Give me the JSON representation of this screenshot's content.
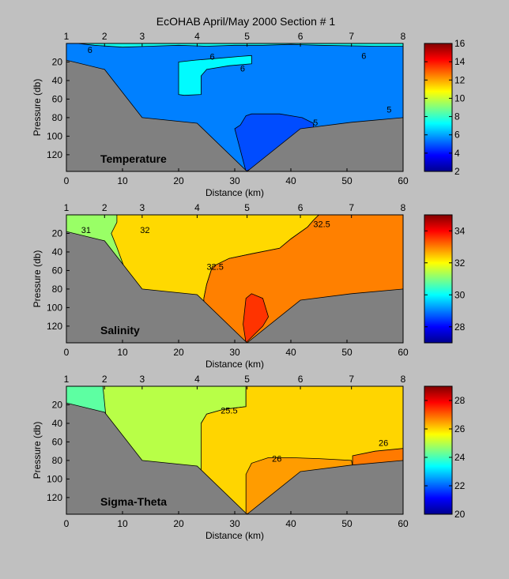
{
  "title": "EcOHAB   April/May 2000    Section # 1",
  "chart_data": [
    {
      "type": "heatmap",
      "panel_label": "Temperature",
      "xlabel": "Distance (km)",
      "ylabel": "Pressure (db)",
      "xlim": [
        0,
        60
      ],
      "ylim": [
        0,
        138
      ],
      "x_ticks": [
        "0",
        "10",
        "20",
        "30",
        "40",
        "50",
        "60"
      ],
      "y_ticks": [
        "20",
        "40",
        "60",
        "80",
        "100",
        "120"
      ],
      "station_labels": [
        "1",
        "2",
        "3",
        "4",
        "5",
        "6",
        "7",
        "8"
      ],
      "station_km": [
        0,
        6.8,
        13.5,
        23.3,
        32.2,
        41.7,
        50.8,
        60
      ],
      "bottom_depth_db": [
        [
          0,
          18
        ],
        [
          6.8,
          28
        ],
        [
          13.5,
          80
        ],
        [
          23.3,
          86
        ],
        [
          32.2,
          138
        ],
        [
          41.7,
          92
        ],
        [
          50.8,
          85
        ],
        [
          60,
          80
        ]
      ],
      "colorbar": {
        "min": 2,
        "max": 16,
        "ticks": [
          "2",
          "4",
          "6",
          "8",
          "10",
          "12",
          "14",
          "16"
        ]
      },
      "regions": [
        {
          "value": 7.5,
          "points": [
            [
              0,
              0
            ],
            [
              60,
              0
            ],
            [
              60,
              138
            ],
            [
              0,
              138
            ]
          ]
        },
        {
          "value": 5.5,
          "points": [
            [
              0,
              0
            ],
            [
              2,
              0
            ],
            [
              5,
              2
            ],
            [
              10,
              4
            ],
            [
              15,
              3
            ],
            [
              20,
              2
            ],
            [
              25,
              3
            ],
            [
              30,
              2
            ],
            [
              35,
              2
            ],
            [
              40,
              1
            ],
            [
              45,
              2
            ],
            [
              55,
              3
            ],
            [
              60,
              3
            ],
            [
              60,
              138
            ],
            [
              0,
              138
            ]
          ]
        },
        {
          "value": 7.2,
          "points": [
            [
              20,
              20
            ],
            [
              23,
              18
            ],
            [
              27,
              16
            ],
            [
              31,
              14
            ],
            [
              33,
              13
            ],
            [
              33,
              22
            ],
            [
              29,
              24
            ],
            [
              25,
              28
            ],
            [
              24,
              35
            ],
            [
              24,
              55
            ],
            [
              21,
              56
            ],
            [
              20,
              55
            ]
          ]
        },
        {
          "value": 4.8,
          "points": [
            [
              30,
              92
            ],
            [
              31,
              88
            ],
            [
              32,
              78
            ],
            [
              33,
              76
            ],
            [
              38,
              76
            ],
            [
              42,
              80
            ],
            [
              44,
              86
            ],
            [
              44,
              100
            ],
            [
              32,
              138
            ]
          ]
        }
      ],
      "contour_labels": [
        {
          "text": "6",
          "x": 4.2,
          "y": 7
        },
        {
          "text": "6",
          "x": 26,
          "y": 14
        },
        {
          "text": "6",
          "x": 31.4,
          "y": 27
        },
        {
          "text": "6",
          "x": 53,
          "y": 13
        },
        {
          "text": "5",
          "x": 57.5,
          "y": 71
        },
        {
          "text": "5",
          "x": 44.4,
          "y": 85
        }
      ]
    },
    {
      "type": "heatmap",
      "panel_label": "Salinity",
      "xlabel": "Distance (km)",
      "ylabel": "Pressure (db)",
      "xlim": [
        0,
        60
      ],
      "ylim": [
        0,
        138
      ],
      "x_ticks": [
        "0",
        "10",
        "20",
        "30",
        "40",
        "50",
        "60"
      ],
      "y_ticks": [
        "20",
        "40",
        "60",
        "80",
        "100",
        "120"
      ],
      "station_labels": [
        "1",
        "2",
        "3",
        "4",
        "5",
        "6",
        "7",
        "8"
      ],
      "station_km": [
        0,
        6.8,
        13.5,
        23.3,
        32.2,
        41.7,
        50.8,
        60
      ],
      "bottom_depth_db": [
        [
          0,
          18
        ],
        [
          6.8,
          28
        ],
        [
          13.5,
          80
        ],
        [
          23.3,
          86
        ],
        [
          32.2,
          138
        ],
        [
          41.7,
          92
        ],
        [
          50.8,
          85
        ],
        [
          60,
          80
        ]
      ],
      "colorbar": {
        "min": 27,
        "max": 35,
        "ticks": [
          "28",
          "30",
          "32",
          "34"
        ]
      },
      "regions": [
        {
          "value": 31.2,
          "points": [
            [
              0,
              0
            ],
            [
              60,
              0
            ],
            [
              60,
              138
            ],
            [
              0,
              138
            ]
          ]
        },
        {
          "value": 32.3,
          "points": [
            [
              9,
              0
            ],
            [
              45,
              0
            ],
            [
              44,
              6
            ],
            [
              43,
              13
            ],
            [
              40,
              26
            ],
            [
              38,
              36
            ],
            [
              33,
              42
            ],
            [
              29,
              47
            ],
            [
              26,
              56
            ],
            [
              25,
              75
            ],
            [
              24.5,
              90
            ],
            [
              24,
              138
            ],
            [
              12,
              138
            ],
            [
              10.5,
              60
            ],
            [
              9,
              35
            ],
            [
              8,
              20
            ],
            [
              9,
              8
            ]
          ]
        },
        {
          "value": 33.0,
          "points": [
            [
              45,
              0
            ],
            [
              60,
              0
            ],
            [
              60,
              138
            ],
            [
              24.5,
              138
            ],
            [
              24.5,
              90
            ],
            [
              25,
              75
            ],
            [
              26,
              56
            ],
            [
              29,
              47
            ],
            [
              33,
              42
            ],
            [
              38,
              36
            ],
            [
              40,
              26
            ],
            [
              43,
              13
            ],
            [
              44,
              6
            ]
          ]
        },
        {
          "value": 33.6,
          "points": [
            [
              31.5,
              118
            ],
            [
              32,
              90
            ],
            [
              33,
              85
            ],
            [
              35,
              90
            ],
            [
              36,
              110
            ],
            [
              35,
              120
            ],
            [
              32,
              138
            ]
          ]
        }
      ],
      "contour_labels": [
        {
          "text": "32",
          "x": 14,
          "y": 16
        },
        {
          "text": "32.5",
          "x": 26.5,
          "y": 56
        },
        {
          "text": "31",
          "x": 3.5,
          "y": 16
        },
        {
          "text": "32.5",
          "x": 45.5,
          "y": 10
        }
      ]
    },
    {
      "type": "heatmap",
      "panel_label": "Sigma-Theta",
      "xlabel": "Distance (km)",
      "ylabel": "Pressure (db)",
      "xlim": [
        0,
        60
      ],
      "ylim": [
        0,
        138
      ],
      "x_ticks": [
        "0",
        "10",
        "20",
        "30",
        "40",
        "50",
        "60"
      ],
      "y_ticks": [
        "20",
        "40",
        "60",
        "80",
        "100",
        "120"
      ],
      "station_labels": [
        "1",
        "2",
        "3",
        "4",
        "5",
        "6",
        "7",
        "8"
      ],
      "station_km": [
        0,
        6.8,
        13.5,
        23.3,
        32.2,
        41.7,
        50.8,
        60
      ],
      "bottom_depth_db": [
        [
          0,
          18
        ],
        [
          6.8,
          28
        ],
        [
          13.5,
          80
        ],
        [
          23.3,
          86
        ],
        [
          32.2,
          138
        ],
        [
          41.7,
          92
        ],
        [
          50.8,
          85
        ],
        [
          60,
          80
        ]
      ],
      "colorbar": {
        "min": 20,
        "max": 29,
        "ticks": [
          "20",
          "22",
          "24",
          "26",
          "28"
        ]
      },
      "regions": [
        {
          "value": 24.2,
          "points": [
            [
              0,
              0
            ],
            [
              60,
              0
            ],
            [
              60,
              138
            ],
            [
              0,
              138
            ]
          ]
        },
        {
          "value": 25.0,
          "points": [
            [
              6.5,
              0
            ],
            [
              32,
              0
            ],
            [
              32,
              22
            ],
            [
              28,
              25
            ],
            [
              25,
              30
            ],
            [
              24,
              40
            ],
            [
              24,
              138
            ],
            [
              8,
              138
            ],
            [
              7,
              30
            ]
          ]
        },
        {
          "value": 26.0,
          "points": [
            [
              32,
              0
            ],
            [
              60,
              0
            ],
            [
              60,
              138
            ],
            [
              24,
              138
            ],
            [
              24,
              40
            ],
            [
              25,
              30
            ],
            [
              28,
              25
            ],
            [
              32,
              22
            ]
          ]
        },
        {
          "value": 26.5,
          "points": [
            [
              32,
              95
            ],
            [
              33,
              83
            ],
            [
              36,
              77
            ],
            [
              40,
              77
            ],
            [
              45,
              78
            ],
            [
              50.8,
              80
            ],
            [
              51,
              86
            ],
            [
              51,
              94
            ],
            [
              32,
              138
            ]
          ]
        },
        {
          "value": 26.8,
          "points": [
            [
              51,
              86
            ],
            [
              51,
              75
            ],
            [
              55,
              70
            ],
            [
              60,
              67
            ],
            [
              60,
              95
            ],
            [
              51,
              95
            ]
          ]
        }
      ],
      "contour_labels": [
        {
          "text": "25.5",
          "x": 29,
          "y": 26
        },
        {
          "text": "26",
          "x": 37.5,
          "y": 78
        },
        {
          "text": "26",
          "x": 56.5,
          "y": 61
        }
      ]
    }
  ]
}
